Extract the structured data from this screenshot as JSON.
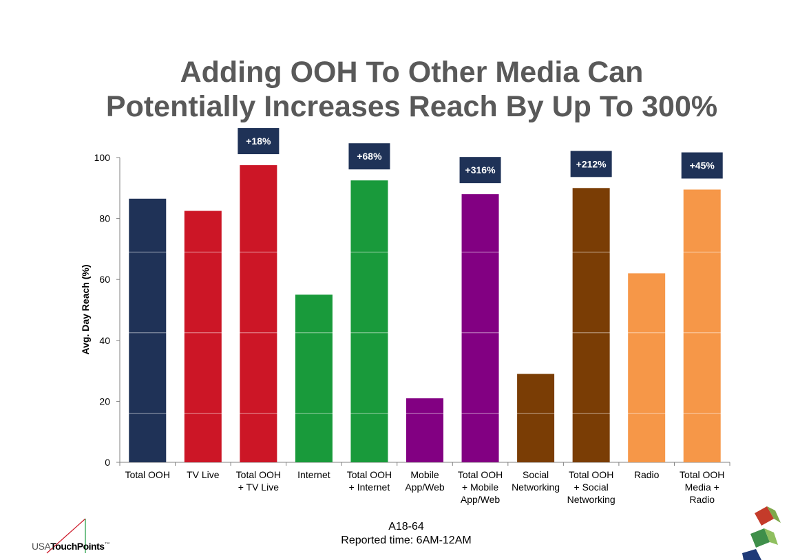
{
  "title_line1": "Adding OOH To Other Media Can",
  "title_line2": "Potentially Increases Reach By Up To 300%",
  "chart_data": {
    "type": "bar",
    "categories": [
      [
        "Total OOH"
      ],
      [
        "TV Live"
      ],
      [
        "Total OOH",
        "+ TV Live"
      ],
      [
        "Internet"
      ],
      [
        "Total OOH",
        "+ Internet"
      ],
      [
        "Mobile",
        "App/Web"
      ],
      [
        "Total OOH",
        "+ Mobile",
        "App/Web"
      ],
      [
        "Social",
        "Networking"
      ],
      [
        "Total OOH",
        "+ Social",
        "Networking"
      ],
      [
        "Radio"
      ],
      [
        "Total OOH",
        "Media +",
        "Radio"
      ]
    ],
    "values": [
      86.5,
      82.5,
      97.5,
      55,
      92.5,
      21,
      88,
      29,
      90,
      62,
      89.5
    ],
    "colors": [
      "#1f3257",
      "#cc1626",
      "#cc1626",
      "#199a3b",
      "#199a3b",
      "#820082",
      "#820082",
      "#7a3d05",
      "#7a3d05",
      "#f69748",
      "#f69748"
    ],
    "callouts": [
      "",
      "",
      "+18%",
      "",
      "+68%",
      "",
      "+316%",
      "",
      "+212%",
      "",
      "+45%"
    ],
    "callout_color": "#1f3257",
    "ylabel": "Avg. Day Reach (%)",
    "ylim": [
      0,
      100
    ],
    "yticks": [
      0,
      20,
      40,
      60,
      80,
      100
    ],
    "gridlines": [
      16,
      42.5,
      69
    ]
  },
  "footer": {
    "line1": "A18-64",
    "line2": "Reported time: 6AM-12AM"
  },
  "logo": {
    "usa": "USA",
    "touchpoints": "TouchPoints",
    "tm": "™"
  }
}
